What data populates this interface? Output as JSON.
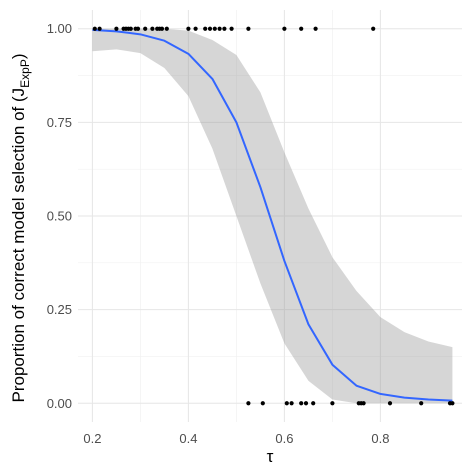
{
  "chart_data": {
    "type": "scatter",
    "xlabel": "τ",
    "ylabel": "Proportion of correct model selection of (J",
    "ylabel_sub": "ExpP",
    "ylabel_end": ")",
    "xlim": [
      0.17,
      0.97
    ],
    "ylim": [
      -0.05,
      1.05
    ],
    "x_ticks": [
      0.2,
      0.4,
      0.6,
      0.8
    ],
    "x_tick_labels": [
      "0.2",
      "0.4",
      "0.6",
      "0.8"
    ],
    "y_ticks": [
      0.0,
      0.25,
      0.5,
      0.75,
      1.0
    ],
    "y_tick_labels": [
      "0.00",
      "0.25",
      "0.50",
      "0.75",
      "1.00"
    ],
    "grid": true,
    "series": [
      {
        "type": "points",
        "color": "#000000",
        "points": [
          [
            0.205,
            1.0
          ],
          [
            0.215,
            1.0
          ],
          [
            0.25,
            1.0
          ],
          [
            0.265,
            1.0
          ],
          [
            0.27,
            1.0
          ],
          [
            0.275,
            1.0
          ],
          [
            0.28,
            1.0
          ],
          [
            0.29,
            1.0
          ],
          [
            0.295,
            1.0
          ],
          [
            0.31,
            1.0
          ],
          [
            0.325,
            1.0
          ],
          [
            0.335,
            1.0
          ],
          [
            0.34,
            1.0
          ],
          [
            0.345,
            1.0
          ],
          [
            0.355,
            1.0
          ],
          [
            0.4,
            1.0
          ],
          [
            0.415,
            1.0
          ],
          [
            0.435,
            1.0
          ],
          [
            0.445,
            1.0
          ],
          [
            0.455,
            1.0
          ],
          [
            0.465,
            1.0
          ],
          [
            0.475,
            1.0
          ],
          [
            0.49,
            1.0
          ],
          [
            0.525,
            1.0
          ],
          [
            0.6,
            1.0
          ],
          [
            0.635,
            1.0
          ],
          [
            0.665,
            1.0
          ],
          [
            0.785,
            1.0
          ],
          [
            0.525,
            0.0
          ],
          [
            0.555,
            0.0
          ],
          [
            0.605,
            0.0
          ],
          [
            0.615,
            0.0
          ],
          [
            0.635,
            0.0
          ],
          [
            0.645,
            0.0
          ],
          [
            0.66,
            0.0
          ],
          [
            0.7,
            0.0
          ],
          [
            0.755,
            0.0
          ],
          [
            0.76,
            0.0
          ],
          [
            0.765,
            0.0
          ],
          [
            0.82,
            0.0
          ],
          [
            0.885,
            0.0
          ],
          [
            0.945,
            0.0
          ],
          [
            0.95,
            0.0
          ]
        ]
      },
      {
        "type": "line",
        "color": "#3366ff",
        "x": [
          0.2,
          0.25,
          0.3,
          0.35,
          0.4,
          0.45,
          0.5,
          0.55,
          0.6,
          0.65,
          0.7,
          0.75,
          0.8,
          0.85,
          0.9,
          0.95
        ],
        "y": [
          0.997,
          0.993,
          0.985,
          0.968,
          0.933,
          0.866,
          0.75,
          0.577,
          0.38,
          0.211,
          0.103,
          0.047,
          0.025,
          0.015,
          0.01,
          0.007
        ]
      },
      {
        "type": "ribbon",
        "color": "#999999",
        "x": [
          0.2,
          0.25,
          0.3,
          0.35,
          0.4,
          0.45,
          0.5,
          0.55,
          0.6,
          0.65,
          0.7,
          0.75,
          0.8,
          0.85,
          0.9,
          0.95
        ],
        "lower": [
          0.94,
          0.945,
          0.935,
          0.895,
          0.82,
          0.68,
          0.5,
          0.32,
          0.16,
          0.06,
          0.01,
          0.0,
          0.0,
          0.0,
          0.0,
          0.0
        ],
        "upper": [
          1.0,
          1.0,
          1.0,
          1.0,
          0.995,
          0.97,
          0.93,
          0.83,
          0.67,
          0.52,
          0.39,
          0.3,
          0.23,
          0.19,
          0.165,
          0.15
        ]
      }
    ]
  }
}
